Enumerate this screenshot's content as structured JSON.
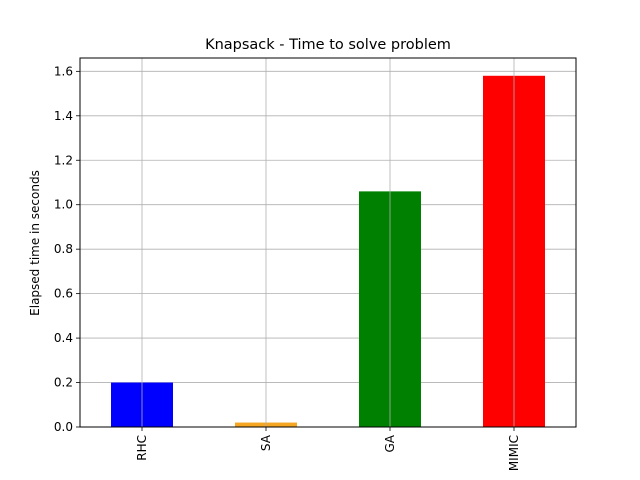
{
  "chart_data": {
    "type": "bar",
    "title": "Knapsack - Time to solve problem",
    "xlabel": "",
    "ylabel": "Elapsed time in seconds",
    "categories": [
      "RHC",
      "SA",
      "GA",
      "MIMIC"
    ],
    "values": [
      0.2,
      0.02,
      1.06,
      1.58
    ],
    "colors": [
      "#0000ff",
      "#f5a623",
      "#008000",
      "#ff0000"
    ],
    "ylim": [
      0,
      1.66
    ],
    "yticks": [
      0.0,
      0.2,
      0.4,
      0.6,
      0.8,
      1.0,
      1.2,
      1.4,
      1.6
    ],
    "grid": true,
    "legend": "none"
  }
}
